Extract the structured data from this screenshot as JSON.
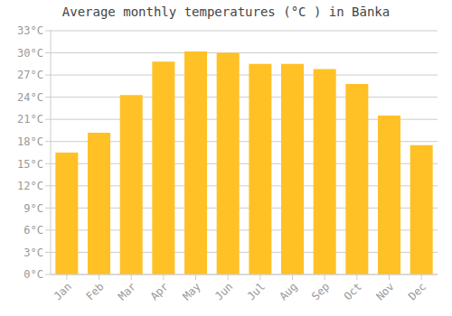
{
  "chart_data": {
    "type": "bar",
    "title": "Average monthly temperatures (°C ) in Bānka",
    "categories": [
      "Jan",
      "Feb",
      "Mar",
      "Apr",
      "May",
      "Jun",
      "Jul",
      "Aug",
      "Sep",
      "Oct",
      "Nov",
      "Dec"
    ],
    "values": [
      16.5,
      19.2,
      24.3,
      28.8,
      30.2,
      30.0,
      28.5,
      28.5,
      27.8,
      25.8,
      21.5,
      17.5
    ],
    "color": "#FFC125",
    "ylim": [
      0,
      33
    ],
    "yticks": [
      {
        "value": 0,
        "label": "0°C"
      },
      {
        "value": 3,
        "label": "3°C"
      },
      {
        "value": 6,
        "label": "6°C"
      },
      {
        "value": 9,
        "label": "9°C"
      },
      {
        "value": 12,
        "label": "12°C"
      },
      {
        "value": 15,
        "label": "15°C"
      },
      {
        "value": 18,
        "label": "18°C"
      },
      {
        "value": 21,
        "label": "21°C"
      },
      {
        "value": 24,
        "label": "24°C"
      },
      {
        "value": 27,
        "label": "27°C"
      },
      {
        "value": 30,
        "label": "30°C"
      },
      {
        "value": 33,
        "label": "33°C"
      }
    ],
    "grid": true
  }
}
